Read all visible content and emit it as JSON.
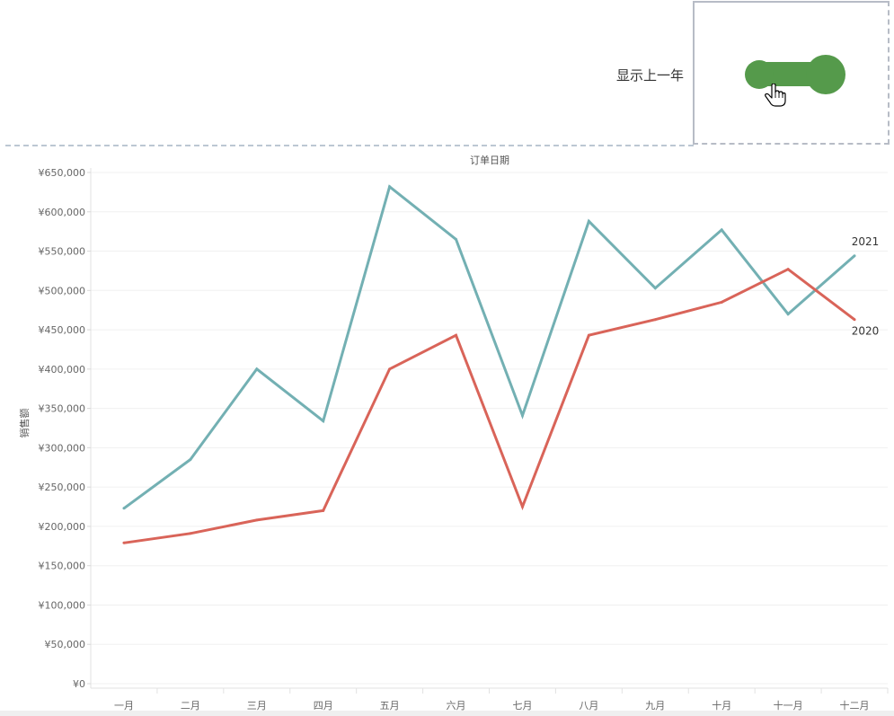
{
  "toggle": {
    "label": "显示上一年",
    "state": "on"
  },
  "colors": {
    "toggle": "#559a4b",
    "series_2021": "#73b0b3",
    "series_2020": "#d96459"
  },
  "chart_data": {
    "type": "line",
    "title": "订单日期",
    "xlabel": "",
    "ylabel": "销售额",
    "categories": [
      "一月",
      "二月",
      "三月",
      "四月",
      "五月",
      "六月",
      "七月",
      "八月",
      "九月",
      "十月",
      "十一月",
      "十二月"
    ],
    "series": [
      {
        "name": "2021",
        "values": [
          223000,
          285000,
          400000,
          334000,
          632000,
          565000,
          341000,
          588000,
          503000,
          577000,
          470000,
          544000
        ]
      },
      {
        "name": "2020",
        "values": [
          179000,
          191000,
          208000,
          220000,
          400000,
          443000,
          225000,
          443000,
          463000,
          485000,
          527000,
          463000
        ]
      }
    ],
    "ylim": [
      0,
      650000
    ],
    "yticks": [
      "¥0",
      "¥50,000",
      "¥100,000",
      "¥150,000",
      "¥200,000",
      "¥250,000",
      "¥300,000",
      "¥350,000",
      "¥400,000",
      "¥450,000",
      "¥500,000",
      "¥550,000",
      "¥600,000",
      "¥650,000"
    ],
    "grid": true
  }
}
